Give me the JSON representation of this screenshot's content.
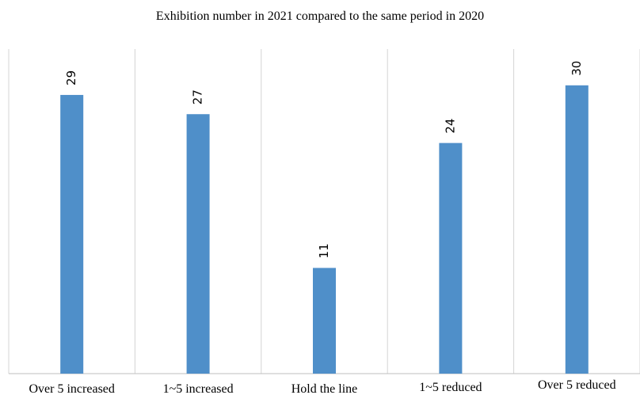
{
  "chart_data": {
    "type": "bar",
    "title": "Exhibition number in 2021 compared to the same period in 2020",
    "categories": [
      "Over 5 increased",
      "1~5 increased",
      "Hold the line",
      "1~5 reduced",
      "Over 5 reduced"
    ],
    "values": [
      29,
      27,
      11,
      24,
      30
    ],
    "xlabel": "",
    "ylabel": "",
    "ylim": [
      0,
      40
    ],
    "grid": "vertical separators between categories",
    "legend": "none",
    "colors": {
      "bar": "#4F8FC9",
      "grid": "#D4D4D4",
      "axis": "#BFBFBF"
    }
  }
}
